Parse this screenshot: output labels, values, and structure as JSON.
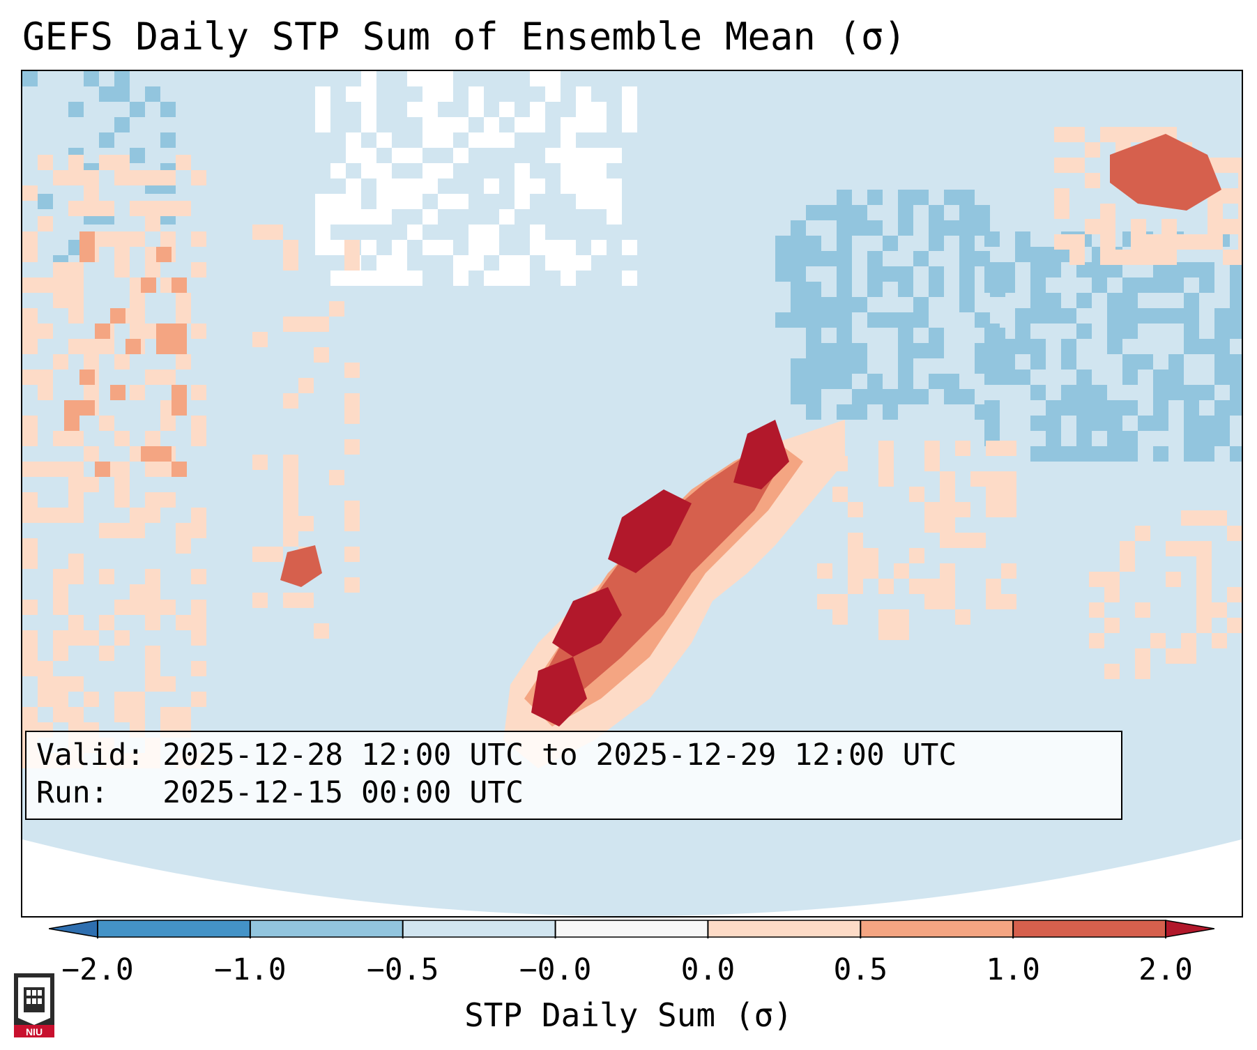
{
  "title": "GEFS Daily STP Sum of Ensemble Mean (σ)",
  "info": {
    "valid_line": "Valid: 2025-12-28 12:00 UTC to 2025-12-29 12:00 UTC",
    "run_line": "Run:   2025-12-15 00:00 UTC"
  },
  "colorbar": {
    "label": "STP Daily Sum (σ)",
    "ticks": [
      "−2.0",
      "−1.0",
      "−0.5",
      "−0.0",
      "0.0",
      "0.5",
      "1.0",
      "2.0"
    ],
    "colors": [
      "#2e6fb0",
      "#4493c7",
      "#92c5de",
      "#d1e5f0",
      "#f7f7f7",
      "#fddbc7",
      "#f4a582",
      "#d6604d",
      "#b2182b"
    ],
    "under_color": "#2e6fb0",
    "over_color": "#b2182b"
  },
  "map": {
    "background_color": "#d1e5f0",
    "boundary_color": "#000000",
    "field_colors": {
      "neutral": "#ffffff",
      "light_blue": "#92c5de",
      "light_red": "#fddbc7",
      "medium_red": "#f4a582",
      "red": "#d6604d",
      "dark_red": "#b2182b"
    }
  },
  "logo": {
    "text": "NIU"
  }
}
